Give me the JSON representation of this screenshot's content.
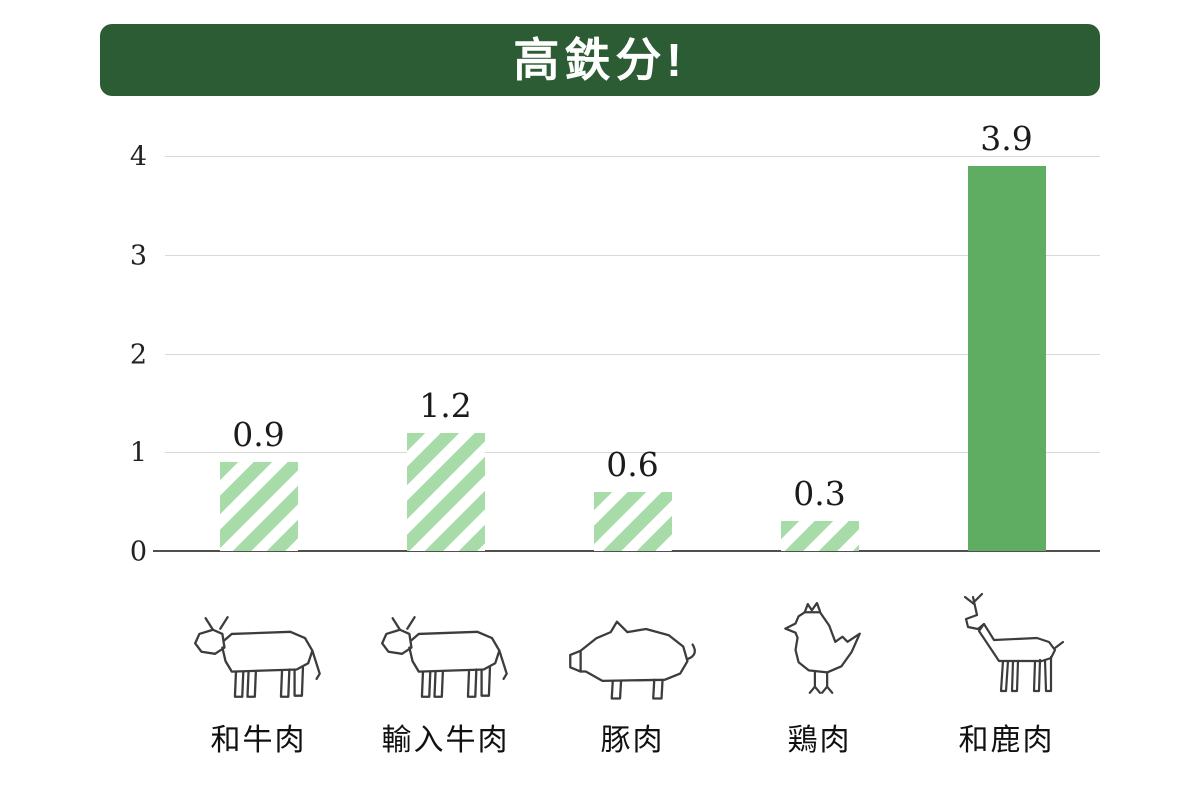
{
  "title": {
    "text": "高鉄分!",
    "banner_color": "#2b5c33"
  },
  "chart_data": {
    "type": "bar",
    "title": "高鉄分!",
    "categories": [
      "和牛肉",
      "輸入牛肉",
      "豚肉",
      "鶏肉",
      "和鹿肉"
    ],
    "values": [
      0.9,
      1.2,
      0.6,
      0.3,
      3.9
    ],
    "value_labels": [
      "0.9",
      "1.2",
      "0.6",
      "0.3",
      "3.9"
    ],
    "icons": [
      "cow-icon",
      "cow-icon",
      "pig-icon",
      "chicken-icon",
      "deer-icon"
    ],
    "bar_styles": [
      "striped",
      "striped",
      "striped",
      "striped",
      "solid"
    ],
    "y_ticks": [
      0,
      1,
      2,
      3,
      4
    ],
    "ylim": [
      0,
      4
    ],
    "xlabel": "",
    "ylabel": "",
    "legend": "none",
    "grid": "horizontal",
    "colors": {
      "solid_bar": "#5fad62",
      "stripe_green": "#a7dba8",
      "grid": "#d9d9d9",
      "baseline": "#4f4f4f",
      "text": "#1b1b1b"
    }
  }
}
